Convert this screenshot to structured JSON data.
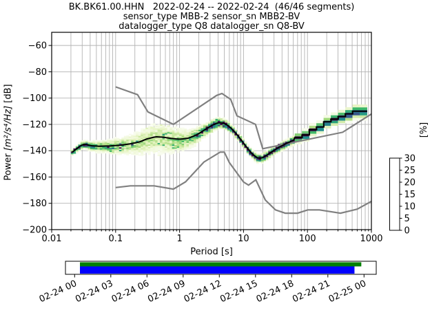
{
  "title": {
    "line1": "BK.BK61.00.HHN   2022-02-24 -- 2022-02-24  (46/46 segments)",
    "line2": "sensor_type MBB-2 sensor_sn MBB2-BV",
    "line3": "datalogger_type Q8 datalogger_sn Q8-BV"
  },
  "chart_data": {
    "type": "heatmap",
    "subtype": "ppsd-probabilistic-power-spectral-density",
    "xlabel": "Period [s]",
    "ylabel_prefix": "Power ",
    "ylabel_math": "[m²/s⁴/Hz]",
    "ylabel_suffix": " [dB]",
    "x_scale": "log",
    "xlim": [
      0.01,
      1000
    ],
    "ylim": [
      -200,
      -50
    ],
    "grid": true,
    "x_ticks": [
      {
        "v": 0.01,
        "label": "0.01"
      },
      {
        "v": 0.1,
        "label": "0.1"
      },
      {
        "v": 1,
        "label": "1"
      },
      {
        "v": 10,
        "label": "10"
      },
      {
        "v": 100,
        "label": "100"
      },
      {
        "v": 1000,
        "label": "1000"
      }
    ],
    "y_ticks": [
      {
        "v": -60,
        "label": "−60"
      },
      {
        "v": -80,
        "label": "−80"
      },
      {
        "v": -100,
        "label": "−100"
      },
      {
        "v": -120,
        "label": "−120"
      },
      {
        "v": -140,
        "label": "−140"
      },
      {
        "v": -160,
        "label": "−160"
      },
      {
        "v": -180,
        "label": "−180"
      },
      {
        "v": -200,
        "label": "−200"
      }
    ],
    "colorbar": {
      "label": "[%]",
      "ticks": [
        0,
        5,
        10,
        15,
        20,
        25,
        30
      ],
      "max": 30,
      "stops": [
        [
          0.0,
          "#ffffff"
        ],
        [
          0.167,
          "#e7f4c3"
        ],
        [
          0.333,
          "#a9db7c"
        ],
        [
          0.5,
          "#3cb669"
        ],
        [
          0.667,
          "#1f928c"
        ],
        [
          0.833,
          "#38588c"
        ],
        [
          1.0,
          "#440a54"
        ]
      ]
    },
    "noise_models": {
      "color": "#808080",
      "nhnm": [
        [
          0.1,
          -91.5
        ],
        [
          0.22,
          -97.4
        ],
        [
          0.32,
          -110.5
        ],
        [
          0.8,
          -120.0
        ],
        [
          3.8,
          -98.0
        ],
        [
          4.6,
          -96.5
        ],
        [
          6.3,
          -101.0
        ],
        [
          7.9,
          -113.5
        ],
        [
          15.4,
          -120.0
        ],
        [
          20.0,
          -138.5
        ],
        [
          354.8,
          -126.0
        ],
        [
          1000,
          -112.1
        ]
      ],
      "nlnm": [
        [
          0.1,
          -168.0
        ],
        [
          0.17,
          -166.7
        ],
        [
          0.4,
          -166.7
        ],
        [
          0.8,
          -169.2
        ],
        [
          1.24,
          -163.7
        ],
        [
          2.4,
          -148.6
        ],
        [
          4.3,
          -141.1
        ],
        [
          5.0,
          -141.1
        ],
        [
          6.0,
          -149.0
        ],
        [
          10.0,
          -163.8
        ],
        [
          12.0,
          -166.2
        ],
        [
          15.6,
          -162.1
        ],
        [
          21.9,
          -177.5
        ],
        [
          31.6,
          -185.0
        ],
        [
          45.0,
          -187.5
        ],
        [
          70.0,
          -187.5
        ],
        [
          101.0,
          -185.0
        ],
        [
          154.0,
          -185.0
        ],
        [
          328.0,
          -187.5
        ],
        [
          600.0,
          -184.4
        ],
        [
          1000,
          -178.5
        ]
      ]
    },
    "histogram": {
      "period_range": [
        0.02,
        700
      ],
      "period_step_octaves": 0.125,
      "mode_line_color": "#000000",
      "mode": [
        [
          0.02,
          -141.8
        ],
        [
          0.024,
          -138.8
        ],
        [
          0.028,
          -136.2
        ],
        [
          0.033,
          -134.9
        ],
        [
          0.04,
          -136.2
        ],
        [
          0.055,
          -136.6
        ],
        [
          0.08,
          -136.4
        ],
        [
          0.12,
          -135.8
        ],
        [
          0.17,
          -134.7
        ],
        [
          0.23,
          -133.5
        ],
        [
          0.3,
          -131.2
        ],
        [
          0.42,
          -129.4
        ],
        [
          0.55,
          -129.7
        ],
        [
          0.75,
          -130.7
        ],
        [
          1.0,
          -131.3
        ],
        [
          1.4,
          -130.4
        ],
        [
          1.9,
          -127.6
        ],
        [
          2.5,
          -123.9
        ],
        [
          3.2,
          -120.7
        ],
        [
          4.0,
          -118.7
        ],
        [
          4.8,
          -119.0
        ],
        [
          5.6,
          -120.6
        ],
        [
          6.5,
          -123.4
        ],
        [
          7.5,
          -126.6
        ],
        [
          9,
          -131.4
        ],
        [
          11,
          -137.0
        ],
        [
          13,
          -141.4
        ],
        [
          15,
          -144.2
        ],
        [
          17,
          -145.8
        ],
        [
          19.5,
          -145.4
        ],
        [
          23,
          -143.4
        ],
        [
          28,
          -140.6
        ],
        [
          35,
          -137.6
        ],
        [
          45,
          -134.8
        ],
        [
          57,
          -132.6
        ],
        [
          70,
          -130.8
        ],
        [
          85,
          -128.7
        ],
        [
          105,
          -125.6
        ],
        [
          130,
          -123.6
        ],
        [
          165,
          -121.3
        ],
        [
          205,
          -118.6
        ],
        [
          250,
          -115.8
        ],
        [
          310,
          -115.0
        ],
        [
          370,
          -114.4
        ],
        [
          430,
          -114.3
        ],
        [
          445,
          -110.9
        ],
        [
          550,
          -110.5
        ],
        [
          700,
          -110.2
        ]
      ],
      "half_width_db": [
        [
          0.02,
          1.6
        ],
        [
          0.03,
          2.2
        ],
        [
          0.05,
          3.2
        ],
        [
          0.08,
          4.2
        ],
        [
          0.13,
          5.2
        ],
        [
          0.2,
          6.8
        ],
        [
          0.3,
          8.6
        ],
        [
          0.45,
          9.6
        ],
        [
          0.65,
          8.6
        ],
        [
          0.9,
          7.6
        ],
        [
          1.3,
          6.2
        ],
        [
          1.8,
          5.0
        ],
        [
          2.5,
          3.8
        ],
        [
          3.5,
          3.2
        ],
        [
          5,
          2.8
        ],
        [
          7,
          2.4
        ],
        [
          10,
          2.3
        ],
        [
          15,
          2.4
        ],
        [
          25,
          2.4
        ],
        [
          40,
          2.5
        ],
        [
          70,
          2.7
        ],
        [
          110,
          3.0
        ],
        [
          180,
          3.2
        ],
        [
          300,
          3.5
        ],
        [
          500,
          3.7
        ],
        [
          700,
          3.7
        ]
      ],
      "peak_percent": [
        [
          0.02,
          27
        ],
        [
          0.03,
          24
        ],
        [
          0.05,
          16
        ],
        [
          0.08,
          13
        ],
        [
          0.13,
          11
        ],
        [
          0.2,
          9
        ],
        [
          0.3,
          8
        ],
        [
          0.45,
          8
        ],
        [
          0.65,
          9
        ],
        [
          0.9,
          10
        ],
        [
          1.3,
          11
        ],
        [
          1.8,
          14
        ],
        [
          2.5,
          20
        ],
        [
          3.5,
          27
        ],
        [
          5,
          30
        ],
        [
          7,
          30
        ],
        [
          10,
          30
        ],
        [
          15,
          30
        ],
        [
          25,
          30
        ],
        [
          40,
          28
        ],
        [
          70,
          27
        ],
        [
          110,
          26
        ],
        [
          180,
          25
        ],
        [
          300,
          26
        ],
        [
          500,
          27
        ],
        [
          700,
          27
        ]
      ]
    }
  },
  "time_axis": {
    "labels": [
      "02-24 00",
      "02-24 03",
      "02-24 06",
      "02-24 09",
      "02-24 12",
      "02-24 15",
      "02-24 18",
      "02-24 21",
      "02-25 00"
    ],
    "coverage": {
      "box_fill": "#ffffff",
      "outline": "#000000",
      "data_color": "#008000",
      "psd_color": "#0000ff",
      "green_frac": [
        0.0466,
        0.952
      ],
      "blue_frac": [
        0.0466,
        0.93
      ]
    }
  }
}
